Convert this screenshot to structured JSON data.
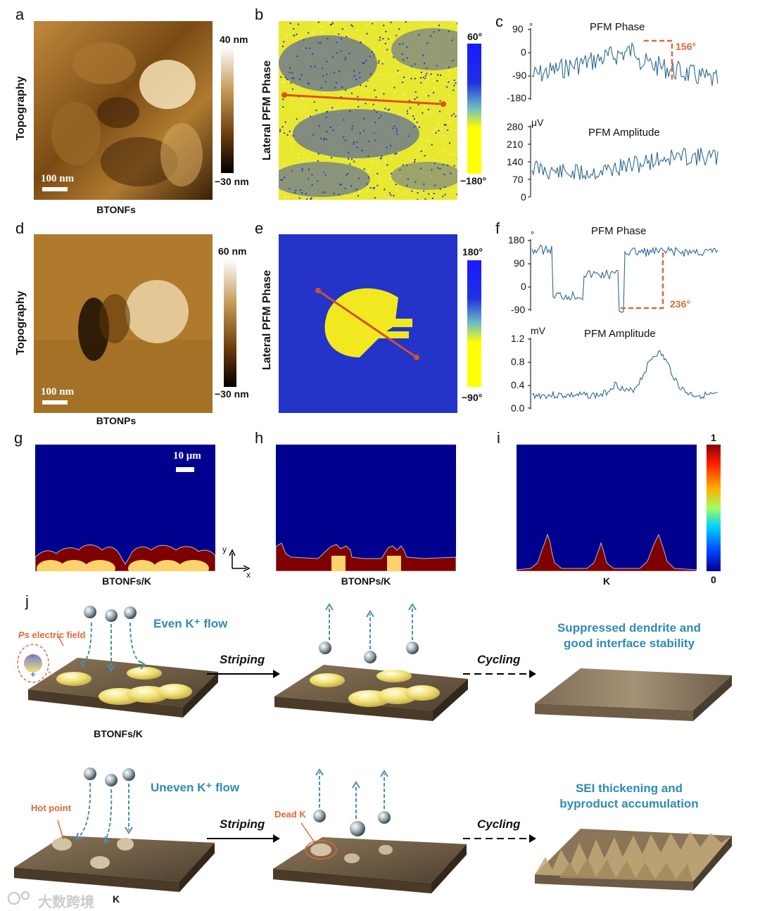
{
  "panels": {
    "a": {
      "letter": "a",
      "ylabel": "Topography",
      "caption": "BTONFs",
      "scalebar": "100 nm",
      "cbar_top": "40 nm",
      "cbar_bottom": "−30 nm"
    },
    "b": {
      "letter": "b",
      "ylabel": "Lateral PFM Phase",
      "cbar_top": "60°",
      "cbar_bottom": "−180°"
    },
    "c": {
      "letter": "c",
      "phase_title": "PFM Phase",
      "phase_unit": "°",
      "phase_ticks": [
        "90",
        "0",
        "-90",
        "-180"
      ],
      "phase_annotation": "156°",
      "amp_title": "PFM Amplitude",
      "amp_unit": "μV",
      "amp_ticks": [
        "280",
        "210",
        "140",
        "70",
        "0"
      ]
    },
    "d": {
      "letter": "d",
      "ylabel": "Topography",
      "caption": "BTONPs",
      "scalebar": "100 nm",
      "cbar_top": "60 nm",
      "cbar_bottom": "−30 nm"
    },
    "e": {
      "letter": "e",
      "ylabel": "Lateral PFM Phase",
      "cbar_top": "180°",
      "cbar_bottom": "−90°"
    },
    "f": {
      "letter": "f",
      "phase_title": "PFM Phase",
      "phase_unit": "°",
      "phase_ticks": [
        "180",
        "90",
        "0",
        "-90"
      ],
      "phase_annotation": "236°",
      "amp_title": "PFM Amplitude",
      "amp_unit": "mV",
      "amp_ticks": [
        "1.2",
        "0.8",
        "0.4",
        "0.0"
      ]
    },
    "g": {
      "letter": "g",
      "caption": "BTONFs/K",
      "scalebar": "10 μm",
      "axis_y": "y",
      "axis_x": "x"
    },
    "h": {
      "letter": "h",
      "caption": "BTONPs/K"
    },
    "i": {
      "letter": "i",
      "caption": "K",
      "cbar_top": "1",
      "cbar_bottom": "0"
    },
    "j": {
      "letter": "j",
      "ps_label_italic": "Ps",
      "ps_label_rest": " electric field",
      "even_flow": "Even  K⁺ flow",
      "uneven_flow": "Uneven  K⁺ flow",
      "striping": "Striping",
      "cycling": "Cycling",
      "top_result": "Suppressed dendrite and good interface stability",
      "bottom_result": "SEI thickening and byproduct accumulation",
      "top_caption": "BTONFs/K",
      "bottom_caption": "K",
      "hot_point": "Hot point",
      "dead_k": "Dead K",
      "minus": "-",
      "plus": "+"
    }
  },
  "watermark": "大数跨境",
  "colors": {
    "orange": "#e2673a",
    "blue_text": "#2f8ab8",
    "sim_blue": "#00008f",
    "sim_red": "#7f0000",
    "sim_yellow": "#ffd36b",
    "line_blue": "#2e6a92"
  }
}
